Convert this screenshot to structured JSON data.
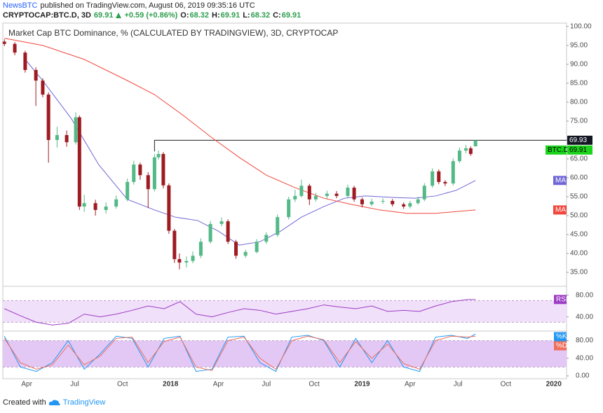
{
  "header": {
    "publisher": "NewsBTC",
    "published": "published on TradingView.com, August 06, 2019 09:35:16 UTC",
    "symbol": "CRYPTOCAP:BTC.D, 3D",
    "last": 69.91,
    "change": "+0.59 (+0.86%)",
    "ohlc": [
      {
        "label": "O:",
        "value": 68.32
      },
      {
        "label": "H:",
        "value": 69.91
      },
      {
        "label": "L:",
        "value": 68.32
      },
      {
        "label": "C:",
        "value": 69.91
      }
    ]
  },
  "chart_data": {
    "type": "candlestick",
    "title": "Market Cap BTC Dominance, % (CALCULATED BY TRADINGVIEW), 3D, CRYPTOCAP",
    "name": "BTC.D",
    "up_color": "#53b987",
    "down_color": "#9e1b22",
    "tag_color": "#1bd31b",
    "x": [
      1.6,
      2.25,
      2.9,
      3.57,
      4.0,
      4.36,
      4.9,
      5.5,
      6.07,
      6.3,
      6.6,
      7.3,
      7.96,
      8.6,
      9.3,
      9.7,
      10.1,
      10.6,
      11.0,
      11.25,
      11.55,
      11.9,
      12.25,
      12.56,
      13.0,
      13.4,
      13.9,
      14.5,
      15.2,
      15.6,
      16.1,
      16.7,
      17.4,
      18.0,
      18.7,
      19.4,
      19.8,
      20.2,
      20.7,
      21.1,
      21.8,
      22.4,
      23.1,
      23.5,
      24.0,
      24.6,
      25.3,
      25.9,
      26.6,
      27.0,
      27.5,
      27.9,
      28.4,
      28.8,
      29.2,
      29.7,
      30.1,
      30.5,
      30.8,
      31.1
    ],
    "open": [
      96.0,
      95.4,
      93.1,
      88.5,
      85.7,
      82.0,
      70.0,
      71.3,
      69.4,
      76.0,
      52.4,
      53.3,
      51.5,
      52.4,
      54.3,
      58.9,
      63.5,
      60.7,
      57.0,
      65.4,
      66.3,
      58.0,
      46.0,
      38.5,
      37.6,
      38.0,
      39.4,
      43.1,
      47.8,
      48.5,
      43.1,
      39.4,
      40.4,
      43.1,
      44.9,
      49.6,
      54.3,
      55.2,
      57.9,
      54.3,
      55.2,
      55.8,
      55.2,
      57.4,
      54.3,
      53.0,
      53.7,
      53.9,
      53.0,
      52.4,
      53.3,
      54.3,
      57.9,
      61.7,
      58.9,
      58.5,
      64.4,
      67.2,
      67.8,
      68.32
    ],
    "high": [
      96.6,
      95.9,
      93.6,
      89.2,
      86.3,
      82.6,
      73.5,
      72.5,
      77.3,
      76.5,
      55.5,
      54.2,
      53.5,
      55.3,
      59.8,
      64.5,
      64.0,
      61.5,
      66.3,
      67.2,
      66.8,
      58.5,
      46.5,
      40.0,
      39.2,
      40.5,
      44.0,
      48.6,
      49.5,
      49.0,
      43.6,
      41.0,
      43.8,
      45.6,
      50.3,
      55.0,
      56.8,
      59.5,
      58.4,
      56.0,
      56.6,
      56.5,
      58.2,
      57.9,
      54.8,
      54.5,
      54.6,
      54.4,
      53.5,
      53.9,
      55.0,
      58.6,
      62.5,
      62.2,
      59.4,
      65.1,
      68.0,
      68.7,
      68.3,
      69.91
    ],
    "low": [
      94.8,
      92.4,
      87.8,
      79.0,
      81.3,
      64.0,
      68.0,
      68.2,
      68.8,
      51.5,
      51.0,
      50.0,
      50.5,
      51.8,
      53.8,
      58.2,
      59.5,
      52.0,
      56.4,
      64.8,
      57.2,
      45.2,
      37.5,
      35.8,
      36.3,
      37.4,
      38.8,
      42.6,
      47.2,
      42.5,
      38.6,
      38.9,
      40.0,
      42.5,
      44.4,
      49.0,
      53.6,
      54.8,
      52.8,
      53.7,
      54.5,
      54.6,
      54.8,
      53.7,
      52.2,
      52.5,
      53.1,
      52.4,
      51.8,
      51.9,
      52.9,
      53.8,
      57.4,
      58.3,
      57.8,
      58.0,
      63.9,
      66.5,
      65.8,
      68.32
    ],
    "close": [
      95.4,
      93.1,
      88.5,
      85.7,
      82.0,
      70.0,
      71.3,
      69.4,
      76.0,
      52.4,
      53.3,
      51.5,
      52.4,
      54.3,
      58.9,
      63.5,
      60.7,
      57.0,
      65.4,
      66.3,
      58.0,
      46.0,
      38.5,
      37.6,
      38.0,
      39.4,
      43.1,
      47.8,
      48.5,
      43.1,
      39.4,
      40.4,
      43.1,
      44.9,
      49.6,
      54.3,
      55.2,
      57.9,
      54.3,
      55.2,
      55.8,
      55.2,
      57.4,
      54.3,
      53.0,
      53.7,
      53.9,
      53.0,
      52.4,
      53.3,
      54.3,
      57.9,
      61.7,
      58.9,
      58.5,
      64.4,
      67.2,
      67.8,
      66.3,
      69.91
    ],
    "xlim": [
      1.5,
      36.8
    ],
    "xticks": [
      {
        "value": 3,
        "label": "Apr"
      },
      {
        "value": 6,
        "label": "Jul"
      },
      {
        "value": 9,
        "label": "Oct"
      },
      {
        "value": 12,
        "label": "2018"
      },
      {
        "value": 15,
        "label": "Apr"
      },
      {
        "value": 18,
        "label": "Jul"
      },
      {
        "value": 21,
        "label": "Oct"
      },
      {
        "value": 24,
        "label": "2019"
      },
      {
        "value": 27,
        "label": "Apr"
      },
      {
        "value": 30,
        "label": "Jul"
      },
      {
        "value": 33,
        "label": "Oct"
      },
      {
        "value": 36,
        "label": "2020"
      }
    ],
    "ylim": [
      31.5,
      100.9
    ],
    "yticks": [
      {
        "value": 100,
        "label": "100.00"
      },
      {
        "value": 95,
        "label": "95.00"
      },
      {
        "value": 90,
        "label": "90.00"
      },
      {
        "value": 85,
        "label": "85.00"
      },
      {
        "value": 80,
        "label": "80.00"
      },
      {
        "value": 75,
        "label": "75.00"
      },
      {
        "value": 70,
        "label": "70.00"
      },
      {
        "value": 65,
        "label": "65.00"
      },
      {
        "value": 60,
        "label": "60.00"
      },
      {
        "value": 55,
        "label": "55.00"
      },
      {
        "value": 50,
        "label": "50.00"
      },
      {
        "value": 45,
        "label": "45.00"
      },
      {
        "value": 40,
        "label": "40.00"
      },
      {
        "value": 35,
        "label": "35.00"
      }
    ],
    "level": {
      "value": 69.93,
      "from": 11.0
    },
    "overlays": [
      {
        "name": "MA",
        "color": "#6f66d6",
        "x": [
          2.9,
          4.0,
          5.8,
          7.5,
          9.3,
          11.0,
          12.3,
          13.7,
          15.0,
          16.3,
          17.6,
          18.9,
          20.2,
          21.6,
          22.9,
          24.2,
          26.0,
          27.3,
          28.6,
          29.9,
          31.1
        ],
        "values": [
          91.3,
          85.7,
          75.6,
          63.5,
          54.3,
          51.5,
          49.6,
          48.7,
          45.9,
          42.2,
          43.1,
          45.9,
          49.6,
          52.4,
          54.6,
          55.2,
          54.8,
          54.6,
          55.2,
          56.7,
          59.3
        ]
      },
      {
        "name": "MA",
        "color": "#f0463c",
        "x": [
          1.6,
          4.0,
          6.6,
          9.3,
          11.0,
          12.8,
          14.5,
          16.3,
          18.0,
          19.8,
          21.6,
          23.3,
          25.1,
          26.8,
          28.6,
          31.1
        ],
        "values": [
          96.9,
          95.0,
          91.3,
          85.7,
          82.0,
          76.5,
          70.9,
          65.4,
          60.7,
          57.4,
          54.6,
          53.0,
          51.5,
          50.6,
          50.6,
          51.5
        ]
      }
    ],
    "panes": [
      {
        "type": "line",
        "x": [
          1.6,
          2.6,
          3.6,
          4.6,
          5.6,
          6.6,
          7.6,
          8.6,
          9.6,
          10.6,
          11.6,
          12.6,
          13.6,
          14.6,
          15.6,
          16.6,
          17.6,
          18.6,
          19.6,
          20.6,
          21.6,
          22.6,
          23.6,
          24.6,
          25.6,
          26.6,
          27.6,
          28.6,
          29.6,
          30.6,
          31.1
        ],
        "ylim": [
          15,
          95
        ],
        "yticks": [
          {
            "value": 80,
            "label": "80.00"
          },
          {
            "value": 40,
            "label": "40.00"
          }
        ],
        "band": [
          30,
          70
        ],
        "band_color": "#f1e0fa",
        "series": [
          {
            "name": "RSI",
            "color": "#9c3bc4",
            "values": [
              55,
              42,
              30,
              25,
              28,
              45,
              40,
              45,
              52,
              60,
              55,
              68,
              45,
              40,
              48,
              55,
              52,
              45,
              50,
              55,
              62,
              58,
              55,
              60,
              50,
              52,
              50,
              60,
              68,
              72,
              72
            ]
          }
        ]
      },
      {
        "type": "line",
        "x": [
          1.6,
          2.6,
          3.6,
          4.6,
          5.6,
          6.6,
          7.6,
          8.6,
          9.6,
          10.6,
          11.6,
          12.6,
          13.6,
          14.6,
          15.6,
          16.6,
          17.6,
          18.6,
          19.6,
          20.6,
          21.6,
          22.6,
          23.6,
          24.6,
          25.6,
          26.6,
          27.6,
          28.6,
          29.6,
          30.6,
          31.1
        ],
        "ylim": [
          -6.5,
          100
        ],
        "yticks": [
          {
            "value": 80,
            "label": "80.00"
          },
          {
            "value": 40,
            "label": "40.00"
          },
          {
            "value": 0,
            "label": "0.00"
          }
        ],
        "band": [
          20,
          80
        ],
        "band_color": "#e3c8f5",
        "series": [
          {
            "name": "%K",
            "color": "#2196f3",
            "values": [
              90,
              20,
              10,
              30,
              80,
              15,
              50,
              90,
              85,
              20,
              85,
              90,
              10,
              15,
              88,
              90,
              30,
              10,
              88,
              92,
              80,
              20,
              85,
              30,
              80,
              20,
              10,
              88,
              92,
              85,
              95
            ]
          },
          {
            "name": "%D",
            "color": "#ef6e5a",
            "values": [
              85,
              30,
              15,
              25,
              70,
              25,
              45,
              85,
              88,
              30,
              78,
              88,
              20,
              12,
              80,
              88,
              40,
              15,
              80,
              90,
              82,
              30,
              78,
              40,
              72,
              28,
              15,
              80,
              90,
              88,
              90
            ]
          }
        ]
      }
    ]
  },
  "footer": {
    "text": "Created with",
    "brand": "TradingView"
  }
}
